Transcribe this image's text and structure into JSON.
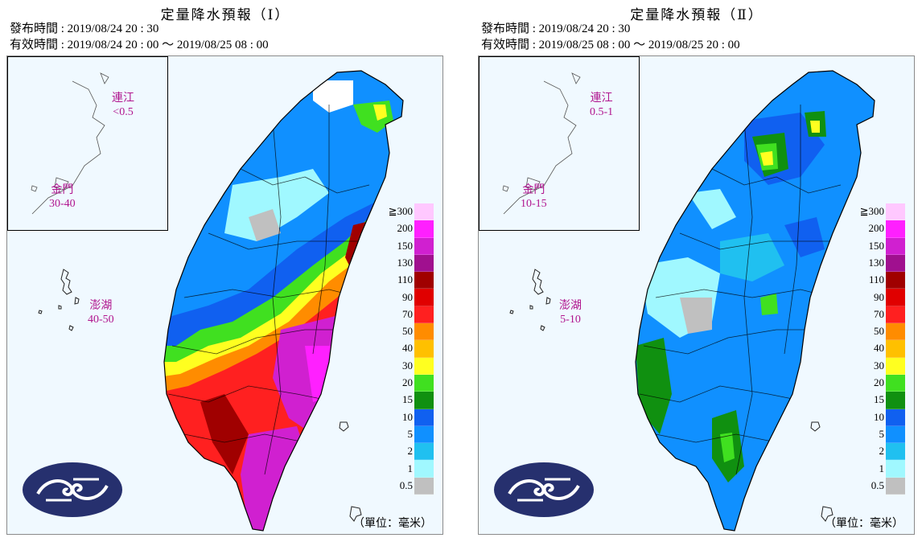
{
  "panels": [
    {
      "title": "定量降水預報（Ⅰ）",
      "issue_time": "發布時間 : 2019/08/24 20 : 30",
      "valid_time": "有效時間 : 2019/08/24 20 : 00 ～ 2019/08/25 08 : 00",
      "islands": {
        "matsu": {
          "name": "連江",
          "value": "<0.5"
        },
        "kinmen": {
          "name": "金門",
          "value": "30-40"
        },
        "penghu": {
          "name": "澎湖",
          "value": "40-50"
        }
      }
    },
    {
      "title": "定量降水預報（Ⅱ）",
      "issue_time": "發布時間 : 2019/08/24 20 : 30",
      "valid_time": "有效時間 : 2019/08/25 08 : 00 ～ 2019/08/25 20 : 00",
      "islands": {
        "matsu": {
          "name": "連江",
          "value": "0.5-1"
        },
        "kinmen": {
          "name": "金門",
          "value": "10-15"
        },
        "penghu": {
          "name": "澎湖",
          "value": "5-10"
        }
      }
    }
  ],
  "legend": {
    "labels": [
      "≧300",
      "200",
      "150",
      "130",
      "110",
      "90",
      "70",
      "50",
      "40",
      "30",
      "20",
      "15",
      "10",
      "5",
      "2",
      "1",
      "0.5"
    ],
    "colors": [
      "#ffc8ff",
      "#ff20ff",
      "#d020d0",
      "#a0108f",
      "#a00000",
      "#e00000",
      "#ff2020",
      "#ff8c00",
      "#ffc000",
      "#ffff20",
      "#40e020",
      "#109010",
      "#1060f0",
      "#1090ff",
      "#20c0f0",
      "#a0f8ff",
      "#c0c0c0"
    ],
    "unit": "（單位：毫米）"
  },
  "colors": {
    "sea": "#f0f9ff",
    "island_label": "#b0158f",
    "logo_bg": "#26306e"
  },
  "icons": {
    "logo": "cwb-cloud-logo"
  }
}
